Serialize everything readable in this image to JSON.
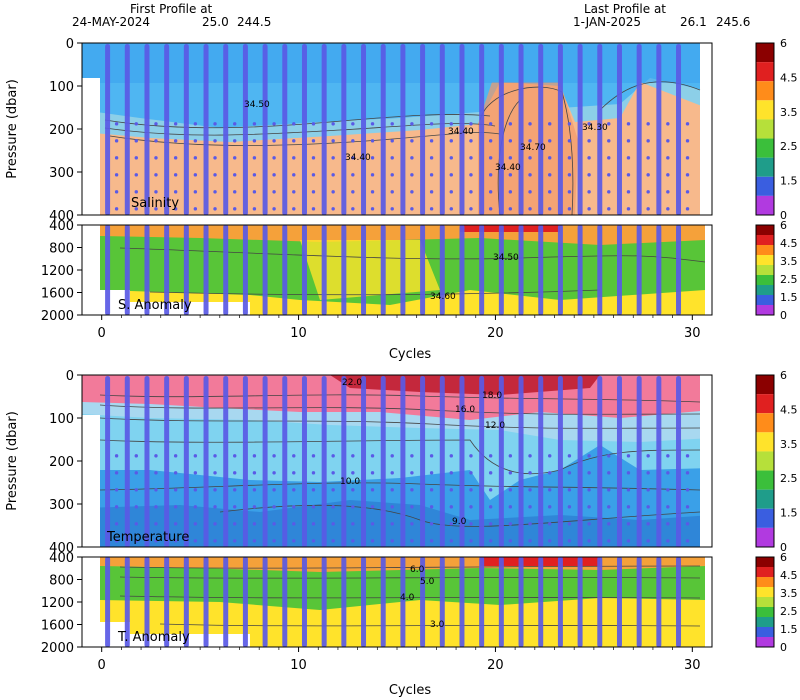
{
  "header": {
    "first_label": "First Profile at",
    "first_date": "24-MAY-2024",
    "first_lat": "25.0",
    "first_lon": "244.5",
    "last_label": "Last Profile at",
    "last_date": "1-JAN-2025",
    "last_lat": "26.1",
    "last_lon": "245.6"
  },
  "colors": {
    "salinity_low": "#4fb6f2",
    "salinity_high": "#f7b98c",
    "temp_warm": "#f27a9a",
    "temp_mid": "#7fd3f0",
    "temp_cold": "#3aa0e8",
    "profile_dots": "#5a5ae6",
    "contour": "#444444"
  },
  "chart_data": [
    {
      "type": "heatmap",
      "panel": "salinity",
      "label": "Salinity",
      "ylabel": "Pressure (dbar)",
      "xlim": [
        -1,
        31
      ],
      "ylim": [
        400,
        0
      ],
      "yticks": [
        "0",
        "100",
        "200",
        "300",
        "400"
      ],
      "contour_labels": [
        "34.50",
        "34.40",
        "34.40",
        "34.40",
        "34.70",
        "34.30"
      ],
      "colorbar": [
        "6",
        "4.5",
        "3.5",
        "2.5",
        "1.5",
        "0"
      ]
    },
    {
      "type": "heatmap",
      "panel": "salinity-anomaly",
      "label": "S. Anomaly",
      "xlabel": "Cycles",
      "xlim": [
        -1,
        31
      ],
      "xticks": [
        "0",
        "10",
        "20",
        "30"
      ],
      "ylim": [
        2000,
        400
      ],
      "yticks": [
        "400",
        "800",
        "1200",
        "1600",
        "2000"
      ],
      "contour_labels": [
        "34.50",
        "34.60"
      ],
      "colorbar": [
        "6",
        "4.5",
        "3.5",
        "2.5",
        "1.5",
        "0"
      ]
    },
    {
      "type": "heatmap",
      "panel": "temperature",
      "label": "Temperature",
      "ylabel": "Pressure (dbar)",
      "xlim": [
        -1,
        31
      ],
      "ylim": [
        400,
        0
      ],
      "yticks": [
        "0",
        "100",
        "200",
        "300",
        "400"
      ],
      "contour_labels": [
        "22.0",
        "18.0",
        "16.0",
        "12.0",
        "10.0",
        "9.0"
      ],
      "colorbar": [
        "6",
        "4.5",
        "3.5",
        "2.5",
        "1.5",
        "0"
      ]
    },
    {
      "type": "heatmap",
      "panel": "temperature-anomaly",
      "label": "T. Anomaly",
      "xlabel": "Cycles",
      "xlim": [
        -1,
        31
      ],
      "xticks": [
        "0",
        "10",
        "20",
        "30"
      ],
      "ylim": [
        2000,
        400
      ],
      "yticks": [
        "400",
        "800",
        "1200",
        "1600",
        "2000"
      ],
      "contour_labels": [
        "6.0",
        "5.0",
        "4.0",
        "3.0"
      ],
      "colorbar": [
        "6",
        "4.5",
        "3.5",
        "2.5",
        "1.5",
        "0"
      ]
    }
  ],
  "profiles": {
    "cycles": [
      0,
      1,
      2,
      3,
      4,
      5,
      6,
      7,
      8,
      9,
      10,
      11,
      12,
      13,
      14,
      15,
      16,
      17,
      18,
      19,
      20,
      21,
      22,
      23,
      24,
      25,
      26,
      27,
      28,
      29
    ],
    "colorbar_colors": [
      "#8b0000",
      "#e02020",
      "#ff8c1a",
      "#ffe32b",
      "#b6e03a",
      "#3bbf3b",
      "#1f9d8a",
      "#3a5ee0",
      "#b13ae0"
    ]
  }
}
